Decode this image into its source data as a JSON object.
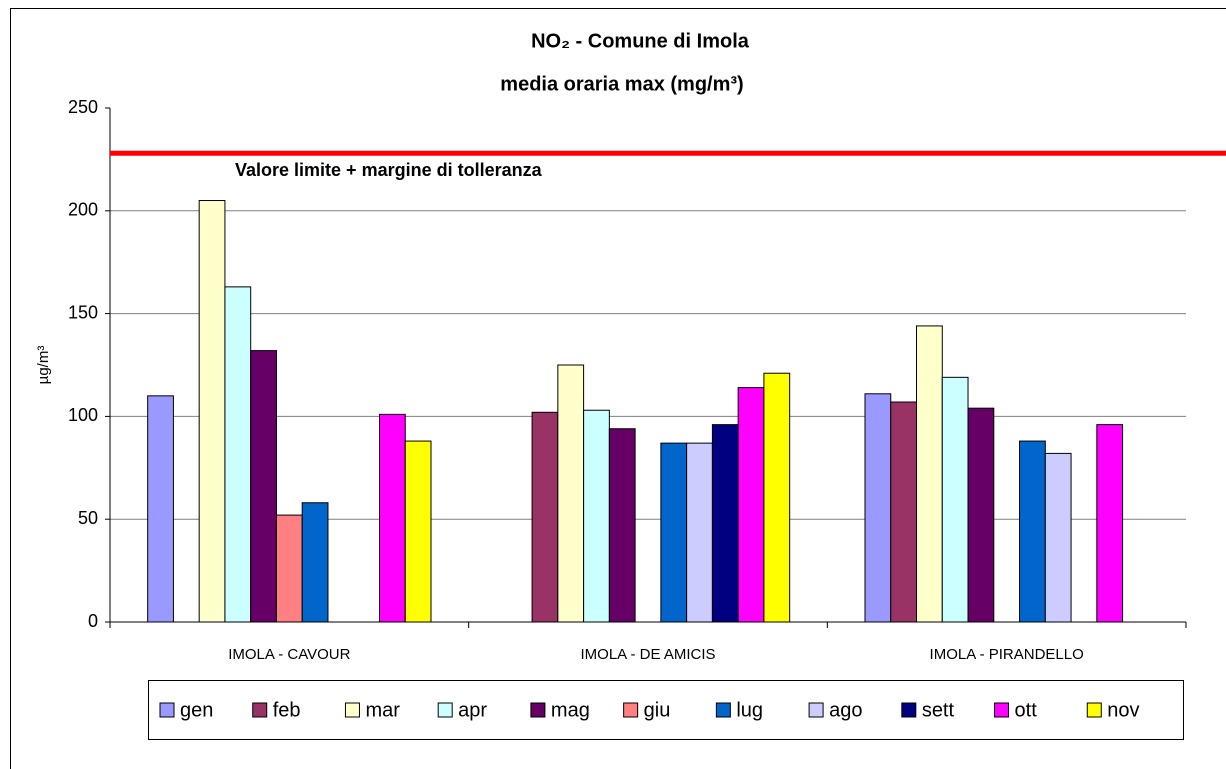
{
  "chart_data": {
    "type": "bar",
    "title": "NO₂ - Comune di Imola",
    "subtitle": "media oraria max  (mg/m³)",
    "y_label": "µg/m³",
    "categories": [
      "IMOLA - CAVOUR",
      "IMOLA - DE AMICIS",
      "IMOLA - PIRANDELLO"
    ],
    "series": [
      {
        "name": "gen",
        "color": "#9999ff",
        "values": [
          110,
          null,
          111
        ]
      },
      {
        "name": "feb",
        "color": "#993366",
        "values": [
          null,
          102,
          107
        ]
      },
      {
        "name": "mar",
        "color": "#ffffcc",
        "values": [
          205,
          125,
          144
        ]
      },
      {
        "name": "apr",
        "color": "#ccffff",
        "values": [
          163,
          103,
          119
        ]
      },
      {
        "name": "mag",
        "color": "#660066",
        "values": [
          132,
          94,
          104
        ]
      },
      {
        "name": "giu",
        "color": "#ff8080",
        "values": [
          52,
          null,
          null
        ]
      },
      {
        "name": "lug",
        "color": "#0066cc",
        "values": [
          58,
          87,
          88
        ]
      },
      {
        "name": "ago",
        "color": "#ccccff",
        "values": [
          null,
          87,
          82
        ]
      },
      {
        "name": "sett",
        "color": "#000080",
        "values": [
          null,
          96,
          null
        ]
      },
      {
        "name": "ott",
        "color": "#ff00ff",
        "values": [
          101,
          114,
          96
        ]
      },
      {
        "name": "nov",
        "color": "#ffff00",
        "values": [
          88,
          121,
          null
        ]
      }
    ],
    "reference_line": {
      "value": 228,
      "label": "Valore limite + margine di tolleranza",
      "color": "#ff0000"
    },
    "ylim": [
      0,
      250
    ],
    "yticks": [
      0,
      50,
      100,
      150,
      200,
      250
    ],
    "grid": true,
    "legend": "bottom"
  }
}
